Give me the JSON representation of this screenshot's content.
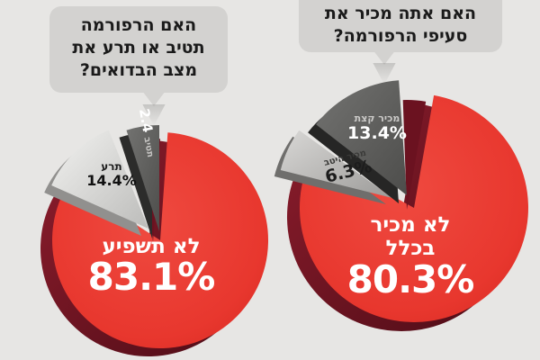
{
  "page": {
    "background": "#e7e6e4"
  },
  "colors": {
    "red": "#e93a31",
    "red_depth": "#7d1424",
    "dark_gray_slice": "#5a5a58",
    "light_gray_slice": "#d9d8d6",
    "medium_gray_slice": "#b9b8b6",
    "bubble": "#d3d2d0",
    "bubble_text": "#1a1a1a",
    "label_white": "#ffffff"
  },
  "chart_data": [
    {
      "type": "pie",
      "title": "האם הרפורמה תטיב או תרע את מצב הבדואים?",
      "title_lines": [
        "האם הרפורמה",
        "תטיב או תרע את",
        "מצב הבדואים?"
      ],
      "legend_position": "on-slice",
      "slices": [
        {
          "label": "לא תשפיע",
          "value": 83.1,
          "pct_label": "83.1%",
          "color": "#e93a31"
        },
        {
          "label": "תרע",
          "value": 14.4,
          "pct_label": "14.4%",
          "color": "#d9d8d6"
        },
        {
          "label": "תטיב",
          "value": 2.4,
          "pct_label": "2.4",
          "color": "#5a5a58"
        }
      ]
    },
    {
      "type": "pie",
      "title": "האם אתה מכיר את סעיפי הרפורמה?",
      "title_lines": [
        "האם אתה מכיר את",
        "סעיפי הרפורמה?"
      ],
      "legend_position": "on-slice",
      "slices": [
        {
          "label": "לא מכיר בכלל",
          "value": 80.3,
          "pct_label": "80.3%",
          "color": "#e93a31"
        },
        {
          "label": "מכיר קצת",
          "value": 13.4,
          "pct_label": "13.4%",
          "color": "#5a5a58"
        },
        {
          "label": "מכיר היטב",
          "value": 6.3,
          "pct_label": "6.3%",
          "color": "#b9b8b6"
        }
      ]
    }
  ]
}
